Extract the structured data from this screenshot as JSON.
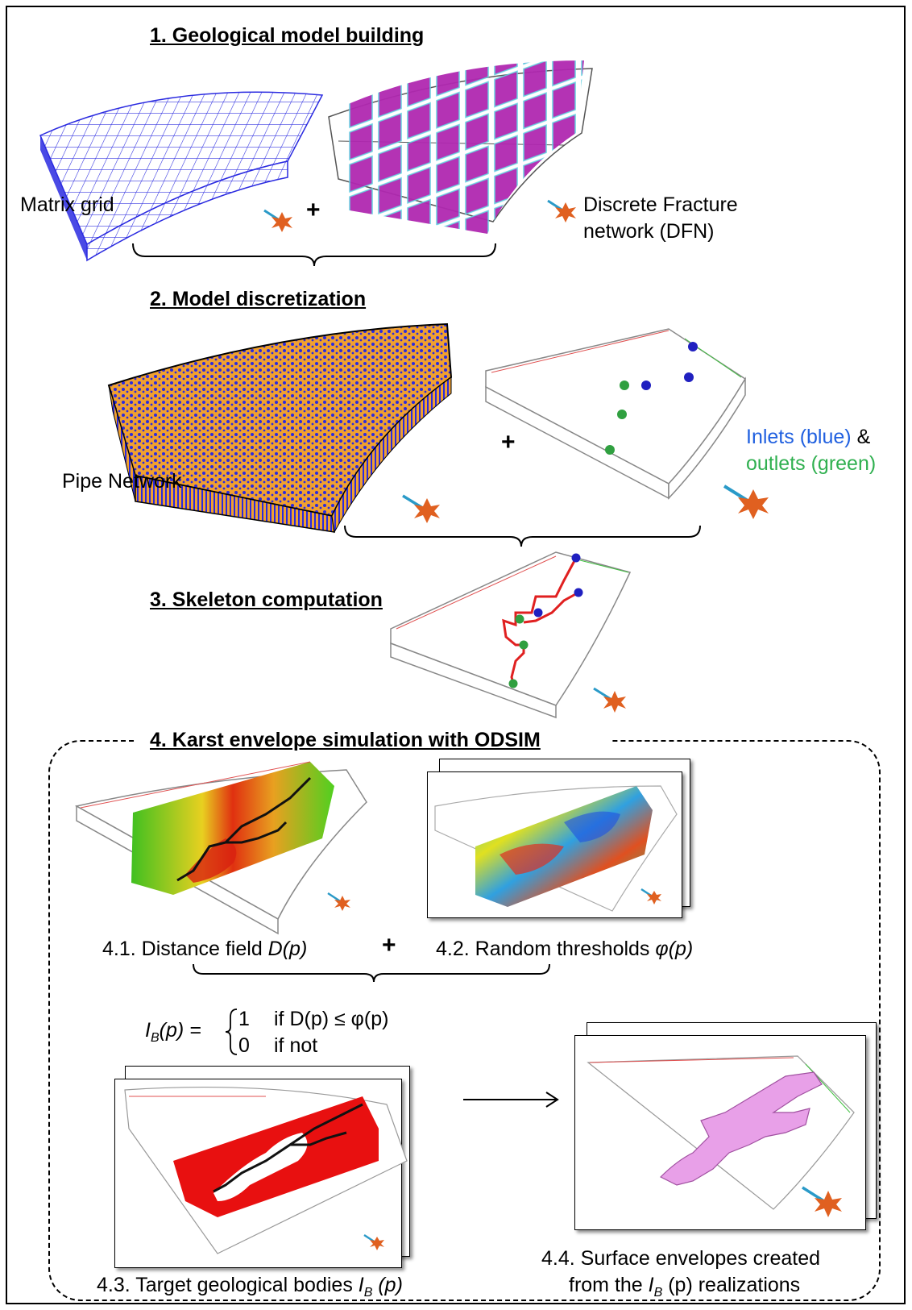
{
  "sections": {
    "s1": "1. Geological model building",
    "s2": "2. Model discretization",
    "s3": "3. Skeleton computation",
    "s4": "4. Karst envelope simulation with ODSIM"
  },
  "labels": {
    "matrix_grid": "Matrix grid",
    "dfn_line1": "Discrete Fracture",
    "dfn_line2": "network (DFN)",
    "pipe_network": "Pipe Network",
    "inlets": "Inlets (blue)",
    "amp": " &",
    "outlets": "outlets (green)",
    "plus": "+"
  },
  "sub": {
    "s41_prefix": "4.1. Distance field ",
    "s41_sym": "D(p)",
    "s42_prefix": "4.2. Random thresholds ",
    "s42_sym": "φ(p)",
    "s43_prefix": "4.3. Target geological bodies ",
    "s43_sym": "I",
    "s43_sub": "B",
    "s43_arg": " (p)",
    "s44_line1": "4.4. Surface envelopes created",
    "s44_pre": "from the ",
    "s44_sym": "I",
    "s44_sub": "B",
    "s44_post": " (p) realizations"
  },
  "formula": {
    "lhs": "I",
    "lhs_sub": "B",
    "lhs_arg": "(p) =",
    "case1_val": "1",
    "case1_cond": "if D(p) ≤ φ(p)",
    "case0_val": "0",
    "case0_cond": "if not"
  },
  "colors": {
    "grid": "#2a2ae0",
    "dfn": "#a020a0",
    "pipe_orange": "#f0a030",
    "inlet_blue": "#2060e0",
    "outlet_green": "#30b050",
    "skeleton": "#e02020",
    "envelope": "#e8a0e8"
  }
}
